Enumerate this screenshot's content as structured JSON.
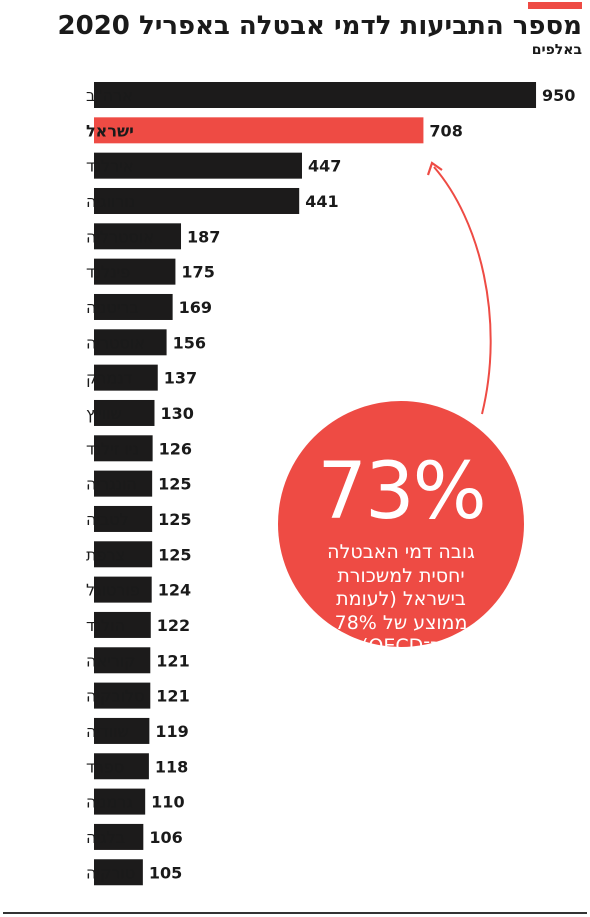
{
  "header": {
    "title": "מספר התביעות לדמי אבטלה באפריל 2020",
    "subtitle": "באלפים"
  },
  "colors": {
    "bar": "#1c1b1b",
    "highlight": "#ee4b44",
    "text": "#1a1a1a"
  },
  "callout": {
    "big_value": "73%",
    "lines": [
      "גובה דמי האבטלה",
      "יחסית למשכורת",
      "בישראל (לעומת",
      "ממוצע של 78%",
      "ב־OECD)"
    ]
  },
  "chart_data": {
    "type": "bar",
    "orientation": "horizontal",
    "title": "מספר התביעות לדמי אבטלה באפריל 2020",
    "subtitle": "באלפים",
    "highlight": "ישראל",
    "categories": [
      "ארה\"ב",
      "ישראל",
      "אירלנד",
      "נורווגיה",
      "אוסטרליה",
      "פינלנד",
      "בריטניה",
      "אוסטריה",
      "דנמרק",
      "שווייץ",
      "ניו זילנד",
      "הונגריה",
      "לטביה",
      "צרפת",
      "פורטוגל",
      "הולנד",
      "קוריאה",
      "סלובקיה",
      "שוודיה",
      "ספרד",
      "גרמניה",
      "בלגיה",
      "טורקיה"
    ],
    "values": [
      950,
      708,
      447,
      441,
      187,
      175,
      169,
      156,
      137,
      130,
      126,
      125,
      125,
      125,
      124,
      122,
      121,
      121,
      119,
      118,
      110,
      106,
      105
    ]
  }
}
